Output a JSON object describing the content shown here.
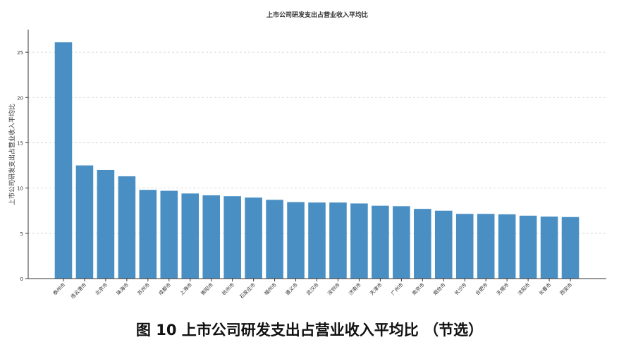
{
  "chart_data": {
    "type": "bar",
    "title": "上市公司研发支出占营业收入平均比",
    "xlabel": "",
    "ylabel": "上市公司研发支出占营业收入平均比",
    "categories": [
      "泰州市",
      "连云港市",
      "北京市",
      "珠海市",
      "苏州市",
      "成都市",
      "上海市",
      "衡阳市",
      "杭州市",
      "石家庄市",
      "福州市",
      "遵义市",
      "武汉市",
      "深圳市",
      "济南市",
      "天津市",
      "广州市",
      "南京市",
      "烟台市",
      "长沙市",
      "合肥市",
      "无锡市",
      "沈阳市",
      "长春市",
      "西安市"
    ],
    "values": [
      26.1,
      12.5,
      12.0,
      11.3,
      9.8,
      9.7,
      9.4,
      9.2,
      9.1,
      8.95,
      8.7,
      8.45,
      8.4,
      8.4,
      8.3,
      8.05,
      8.0,
      7.7,
      7.5,
      7.15,
      7.15,
      7.1,
      6.95,
      6.85,
      6.8
    ],
    "ylim": [
      0,
      27.5
    ],
    "yticks": [
      0,
      5,
      10,
      15,
      20,
      25
    ],
    "grid": "horizontal dashed",
    "bar_color": "#4a8fc4"
  },
  "caption": "图 10  上市公司研发支出占营业收入平均比 （节选）"
}
